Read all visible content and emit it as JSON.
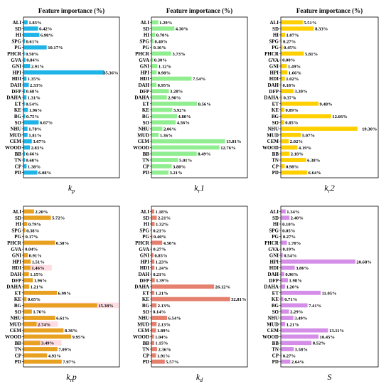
{
  "chart_data": [
    {
      "type": "bar",
      "title": "Feature importance (%)",
      "xlabel_main": "k",
      "xlabel_sub": "p",
      "color": "#1fb4e8",
      "categories": [
        "ALI",
        "SD",
        "HI",
        "SPG",
        "PG",
        "PHCR",
        "GVA",
        "GNI",
        "HPI",
        "HDI",
        "DAH",
        "DFP",
        "DAHA",
        "ET",
        "KE",
        "BG",
        "SO",
        "NHU",
        "MUD",
        "CEM",
        "WOOD",
        "BB",
        "TN",
        "CP",
        "PD"
      ],
      "values": [
        1.83,
        6.42,
        6.98,
        0.61,
        10.17,
        0.5,
        0.84,
        2.91,
        35.36,
        1.35,
        2.33,
        0.68,
        1.31,
        0.54,
        1.96,
        0.75,
        6.67,
        1.78,
        1.81,
        3.67,
        2.83,
        0.66,
        0.6,
        1.38,
        6.08
      ],
      "value_labels": [
        "1.83%",
        "6.42%",
        "6.98%",
        "0.61%",
        "10.17%",
        "0.50%",
        "0.84%",
        "2.91%",
        "35.36%",
        "1.35%",
        "2.33%",
        "0.68%",
        "1.31%",
        "0.54%",
        "1.96%",
        "0.75%",
        "6.67%",
        "1.78%",
        "1.81%",
        "3.67%",
        "2.83%",
        "0.66%",
        "0.60%",
        "1.38%",
        "6.08%"
      ]
    },
    {
      "type": "bar",
      "title": "Feature importance (%)",
      "xlabel_main": "k",
      "xlabel_sub": "r",
      "xlabel_tail": "1",
      "color": "#90ee90",
      "categories": [
        "ALI",
        "SD",
        "HI",
        "SPG",
        "PG",
        "PHCR",
        "GVA",
        "GNI",
        "HPI",
        "HDI",
        "DAH",
        "DFP",
        "DAHA",
        "ET",
        "KE",
        "BG",
        "SO",
        "NHU",
        "MUD",
        "CEM",
        "WOOD",
        "BB",
        "TN",
        "CP",
        "PD"
      ],
      "values": [
        1.29,
        4.3,
        0.7,
        0.4,
        0.16,
        3.73,
        0.3,
        1.12,
        0.98,
        7.54,
        0.95,
        3.28,
        2.9,
        8.56,
        3.92,
        4.8,
        4.56,
        2.06,
        1.36,
        13.81,
        12.76,
        8.49,
        5.01,
        3.8,
        3.21
      ],
      "value_labels": [
        "1.29%",
        "4.30%",
        "0.70%",
        "0.40%",
        "0.16%",
        "3.73%",
        "0.30%",
        "1.12%",
        "0.98%",
        "7.54%",
        "0.95%",
        "3.28%",
        "2.90%",
        "8.56%",
        "3.92%",
        "4.80%",
        "4.56%",
        "2.06%",
        "1.36%",
        "13.81%",
        "12.76%",
        "8.49%",
        "5.01%",
        "3.80%",
        "3.21%"
      ]
    },
    {
      "type": "bar",
      "title": "Feature importance (%)",
      "xlabel_main": "k",
      "xlabel_sub": "r",
      "xlabel_tail": "2",
      "color": "#ffd000",
      "categories": [
        "ALI",
        "SD",
        "HI",
        "SPG",
        "PG",
        "PHCR",
        "GVA",
        "GNI",
        "HPI",
        "HDI",
        "DAH",
        "DFP",
        "DAHA",
        "ET",
        "KE",
        "BG",
        "SO",
        "NHU",
        "MUD",
        "CEM",
        "WOOD",
        "BB",
        "TN",
        "CP",
        "PD"
      ],
      "values": [
        5.51,
        8.33,
        1.07,
        0.27,
        0.45,
        5.81,
        0.0,
        1.49,
        1.66,
        1.02,
        0.18,
        3.2,
        0.37,
        9.48,
        0.89,
        12.66,
        0.85,
        19.3,
        5.07,
        2.02,
        4.19,
        2.18,
        6.38,
        0.98,
        6.64
      ],
      "value_labels": [
        "5.51%",
        "8.33%",
        "1.07%",
        "0.27%",
        "0.45%",
        "5.81%",
        "0.00%",
        "1.49%",
        "1.66%",
        "1.02%",
        "0.18%",
        "3.20%",
        "0.37%",
        "9.48%",
        "0.89%",
        "12.66%",
        "0.85%",
        "19.30%",
        "5.07%",
        "2.02%",
        "4.19%",
        "2.18%",
        "6.38%",
        "0.98%",
        "6.64%"
      ]
    },
    {
      "type": "bar",
      "xlabel_main": "k",
      "xlabel_sub": "r",
      "xlabel_tail": "p",
      "color": "#e8a020",
      "highlight_color": "#ffc0cb",
      "categories": [
        "ALI",
        "SD",
        "HI",
        "SPG",
        "PG",
        "PHCR",
        "GVA",
        "GNI",
        "HPI",
        "HDI",
        "DAH",
        "DFP",
        "DAHA",
        "ET",
        "KE",
        "BG",
        "SO",
        "NHU",
        "MUD",
        "CEM",
        "WOOD",
        "BB",
        "TN",
        "CP",
        "PD"
      ],
      "values": [
        2.2,
        5.72,
        0.79,
        0.38,
        0.17,
        6.58,
        0.04,
        0.91,
        1.51,
        1.46,
        1.15,
        1.96,
        1.21,
        6.99,
        0.65,
        15.38,
        1.76,
        6.61,
        2.74,
        8.36,
        9.95,
        3.49,
        7.09,
        4.93,
        7.97
      ],
      "value_labels": [
        "2.20%",
        "5.72%",
        "0.79%",
        "0.38%",
        "0.17%",
        "6.58%",
        "0.04%",
        "0.91%",
        "1.51%",
        "1.46%",
        "1.15%",
        "1.96%",
        "1.21%",
        "6.99%",
        "0.65%",
        "15.38%",
        "1.76%",
        "6.61%",
        "2.74%",
        "8.36%",
        "9.95%",
        "3.49%",
        "7.09%",
        "4.93%",
        "7.97%"
      ]
    },
    {
      "type": "bar",
      "xlabel_main": "k",
      "xlabel_sub": "d",
      "color": "#e57f6e",
      "categories": [
        "ALI",
        "SD",
        "HI",
        "SPG",
        "PG",
        "PHCR",
        "GVA",
        "GNI",
        "HPI",
        "HDI",
        "DAH",
        "DFP",
        "DAHA",
        "ET",
        "KE",
        "BG",
        "SO",
        "NHU",
        "MUD",
        "CEM",
        "WOOD",
        "BB",
        "TN",
        "CP",
        "PD"
      ],
      "values": [
        1.18,
        2.21,
        1.32,
        0.21,
        0.4,
        4.5,
        0.27,
        0.85,
        1.23,
        1.24,
        0.21,
        1.39,
        26.12,
        1.21,
        32.81,
        2.13,
        0.14,
        6.54,
        2.13,
        1.89,
        1.04,
        1.15,
        2.36,
        1.91,
        5.57
      ],
      "value_labels": [
        "1.18%",
        "2.21%",
        "1.32%",
        "0.21%",
        "0.40%",
        "4.50%",
        "0.27%",
        "0.85%",
        "1.23%",
        "1.24%",
        "0.21%",
        "1.39%",
        "26.12%",
        "1.21%",
        "32.81%",
        "2.13%",
        "0.14%",
        "6.54%",
        "2.13%",
        "1.89%",
        "1.04%",
        "1.15%",
        "2.36%",
        "1.91%",
        "5.57%"
      ]
    },
    {
      "type": "bar",
      "xlabel_main": "S",
      "color": "#d58ee8",
      "categories": [
        "ALI",
        "SD",
        "HI",
        "SPG",
        "PG",
        "PHCR",
        "GVA",
        "GNI",
        "HPI",
        "HDI",
        "DAH",
        "DFP",
        "DAHA",
        "ET",
        "KE",
        "BG",
        "SO",
        "NHU",
        "MUD",
        "CEM",
        "WOOD",
        "BB",
        "TN",
        "CP",
        "PD"
      ],
      "values": [
        1.34,
        2.4,
        0.1,
        0.05,
        0.27,
        1.7,
        0.19,
        0.54,
        20.68,
        3.86,
        0.96,
        1.98,
        1.2,
        11.05,
        0.71,
        7.41,
        2.29,
        3.49,
        1.21,
        13.11,
        10.45,
        8.52,
        3.58,
        0.27,
        2.64
      ],
      "value_labels": [
        "1.34%",
        "2.40%",
        "0.10%",
        "0.05%",
        "0.27%",
        "1.70%",
        "0.19%",
        "0.54%",
        "20.68%",
        "3.86%",
        "0.96%",
        "1.98%",
        "1.20%",
        "11.05%",
        "0.71%",
        "7.41%",
        "2.29%",
        "3.49%",
        "1.21%",
        "13.11%",
        "10.45%",
        "8.52%",
        "3.58%",
        "0.27%",
        "2.64%"
      ]
    }
  ]
}
